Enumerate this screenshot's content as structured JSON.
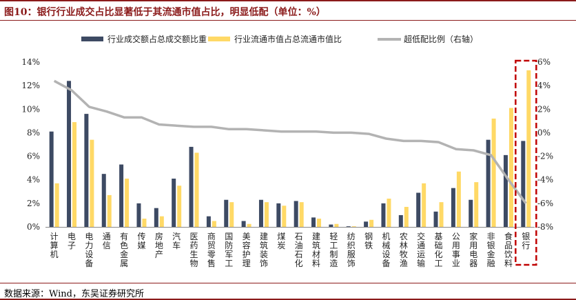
{
  "title": "图10：银行行业成交占比显著低于其流通市值占比，明显低配（单位：%）",
  "source": "数据来源：Wind，东吴证券研究所",
  "colors": {
    "dark": "#3d4a63",
    "yellow": "#ffd966",
    "gray": "#b3b3b3",
    "highlight": "#c00000",
    "frame": "#8b1a1a"
  },
  "chart_data": {
    "type": "bar",
    "categories": [
      "计算机",
      "电子",
      "电力设备",
      "通信",
      "有色金属",
      "传媒",
      "房地产",
      "汽车",
      "医药生物",
      "商贸零售",
      "国防军工",
      "美容护理",
      "建筑装饰",
      "煤炭",
      "石油石化",
      "建筑材料",
      "轻工制造",
      "纺织服饰",
      "钢铁",
      "机械设备",
      "农林牧渔",
      "交通运输",
      "基础化工",
      "公用事业",
      "家用电器",
      "非银金融",
      "食品饮料",
      "银行"
    ],
    "series": [
      {
        "name": "行业成交额占总成交额比重",
        "axis": "left",
        "style": "bar",
        "values": [
          8.1,
          12.4,
          9.6,
          4.5,
          5.3,
          2.0,
          1.6,
          4.1,
          6.8,
          0.9,
          2.3,
          0.5,
          2.3,
          2.0,
          2.2,
          0.8,
          0.2,
          0.05,
          0.45,
          2.0,
          1.0,
          2.9,
          1.3,
          3.3,
          2.3,
          7.4,
          6.1,
          7.3
        ]
      },
      {
        "name": "行业流通市值占总流通市值比",
        "axis": "left",
        "style": "bar",
        "values": [
          3.7,
          8.9,
          7.4,
          2.7,
          4.1,
          0.7,
          0.9,
          3.5,
          6.3,
          0.5,
          2.1,
          0.25,
          2.1,
          1.8,
          2.1,
          0.7,
          0.25,
          0.05,
          0.6,
          2.4,
          1.7,
          3.7,
          2.1,
          4.7,
          3.8,
          9.2,
          10.1,
          13.3
        ]
      },
      {
        "name": "超低配比例（右轴）",
        "axis": "right",
        "style": "line",
        "values": [
          4.4,
          3.6,
          2.2,
          1.8,
          1.3,
          1.3,
          0.7,
          0.6,
          0.5,
          0.5,
          0.3,
          0.3,
          0.2,
          0.1,
          0.1,
          0.1,
          0.0,
          0.0,
          -0.1,
          -0.5,
          -0.7,
          -0.7,
          -0.8,
          -1.4,
          -1.5,
          -1.9,
          -4.0,
          -6.0
        ]
      }
    ],
    "y_left": {
      "min": 0,
      "max": 14,
      "step": 2,
      "ticks": [
        "0%",
        "2%",
        "4%",
        "6%",
        "8%",
        "10%",
        "12%",
        "14%"
      ]
    },
    "y_right": {
      "min": -8,
      "max": 6,
      "step": 2,
      "ticks": [
        "-8%",
        "-6%",
        "-4%",
        "-2%",
        "0%",
        "2%",
        "4%",
        "6%"
      ]
    },
    "highlight_category": "银行",
    "grid": false,
    "legend_position": "top"
  }
}
